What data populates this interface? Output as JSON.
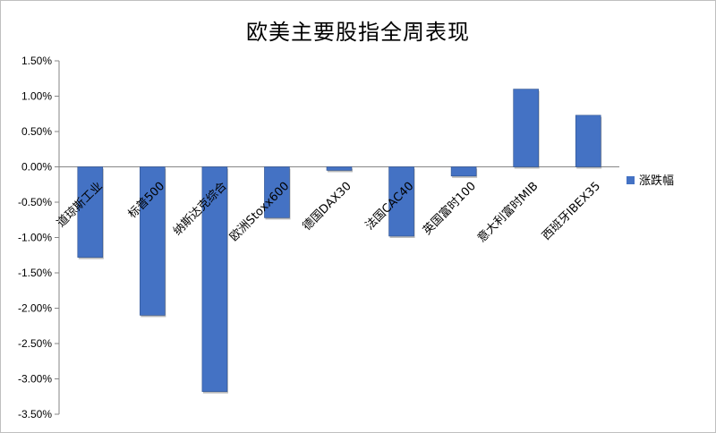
{
  "chart_data": {
    "type": "bar",
    "title": "欧美主要股指全周表现",
    "categories": [
      "道琼斯工业",
      "标普500",
      "纳斯达克综合",
      "欧洲Stoxx600",
      "德国DAX30",
      "法国CAC40",
      "英国富时100",
      "意大利富时MIB",
      "西班牙IBEX35"
    ],
    "series": [
      {
        "name": "涨跌幅",
        "values": [
          -1.28,
          -2.1,
          -3.18,
          -0.72,
          -0.05,
          -0.98,
          -0.13,
          1.1,
          0.73
        ]
      }
    ],
    "ylim": [
      -3.5,
      1.5
    ],
    "yticks": [
      1.5,
      1.0,
      0.5,
      0.0,
      -0.5,
      -1.0,
      -1.5,
      -2.0,
      -2.5,
      -3.0,
      -3.5
    ],
    "ytick_format": "percent_2dp",
    "grid": false,
    "legend": "right",
    "colors": {
      "bar": "#4472c4",
      "bar_edge": "#2f528f",
      "shadow": "#7f7f7f"
    }
  }
}
